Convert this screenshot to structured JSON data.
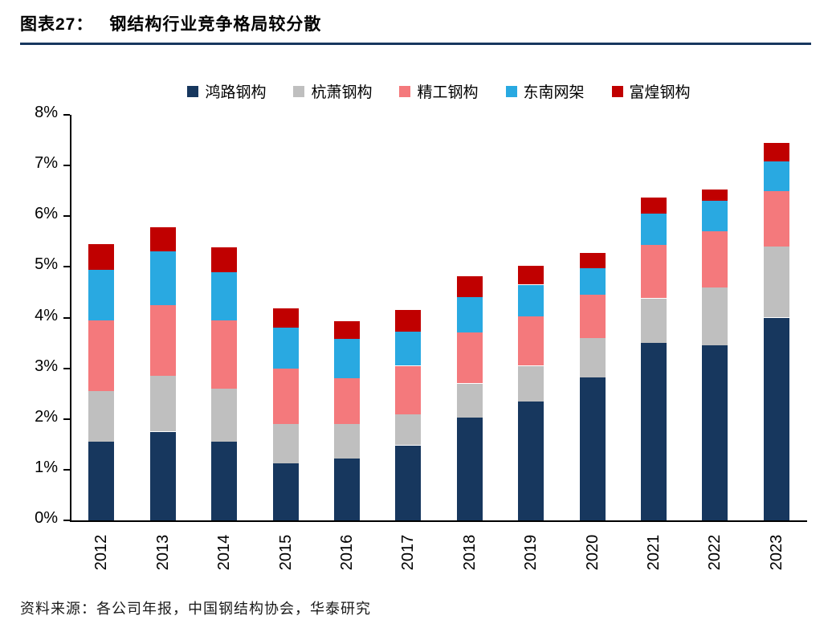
{
  "title": {
    "prefix": "图表27：",
    "text": "钢结构行业竞争格局较分散"
  },
  "source": "资料来源：各公司年报，中国钢结构协会，华泰研究",
  "chart_data": {
    "type": "bar",
    "stacked": true,
    "title": "钢结构行业竞争格局较分散",
    "categories": [
      "2012",
      "2013",
      "2014",
      "2015",
      "2016",
      "2017",
      "2018",
      "2019",
      "2020",
      "2021",
      "2022",
      "2023"
    ],
    "series": [
      {
        "name": "鸿路钢构",
        "color": "#17375E",
        "values": [
          1.55,
          1.75,
          1.55,
          1.12,
          1.22,
          1.48,
          2.03,
          2.35,
          2.82,
          3.5,
          3.45,
          4.0
        ]
      },
      {
        "name": "杭萧钢构",
        "color": "#BFBFBF",
        "values": [
          1.0,
          1.1,
          1.05,
          0.78,
          0.68,
          0.62,
          0.67,
          0.7,
          0.78,
          0.88,
          1.15,
          1.4
        ]
      },
      {
        "name": "精工钢构",
        "color": "#F4797C",
        "values": [
          1.4,
          1.4,
          1.35,
          1.1,
          0.9,
          0.95,
          1.0,
          0.98,
          0.85,
          1.05,
          1.1,
          1.1
        ]
      },
      {
        "name": "东南网架",
        "color": "#29A9E1",
        "values": [
          1.0,
          1.05,
          0.95,
          0.8,
          0.78,
          0.68,
          0.7,
          0.62,
          0.52,
          0.62,
          0.6,
          0.58
        ]
      },
      {
        "name": "富煌钢构",
        "color": "#C00000",
        "values": [
          0.5,
          0.48,
          0.48,
          0.38,
          0.35,
          0.42,
          0.42,
          0.37,
          0.3,
          0.32,
          0.23,
          0.37
        ]
      }
    ],
    "totals": [
      5.45,
      5.78,
      5.38,
      4.18,
      3.93,
      4.15,
      4.82,
      5.02,
      5.27,
      6.37,
      6.53,
      7.45
    ],
    "xlabel": "",
    "ylabel": "",
    "ylim": [
      0,
      8
    ],
    "ytick_step": 1,
    "ytick_suffix": "%",
    "grid": false,
    "legend_position": "top",
    "x_tick_rotation": -90
  }
}
